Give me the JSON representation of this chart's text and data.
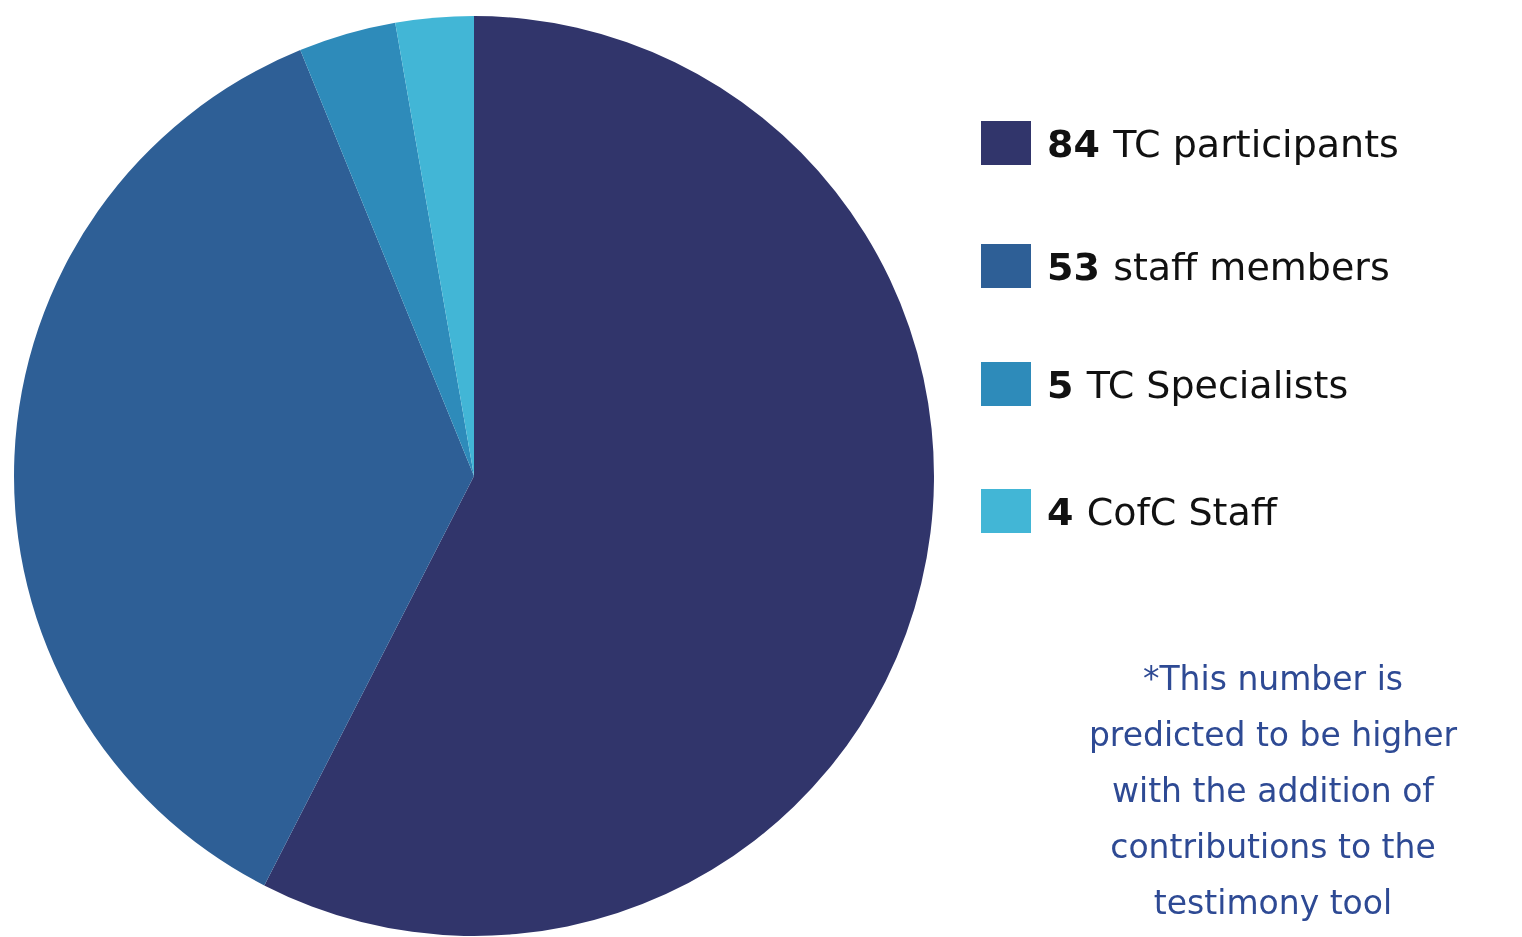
{
  "chart_data": {
    "type": "pie",
    "categories": [
      "TC participants",
      "staff members",
      "TC Specialists",
      "CofC Staff"
    ],
    "values": [
      84,
      53,
      5,
      4
    ],
    "colors": [
      "#31356b",
      "#2e5f96",
      "#2e8bba",
      "#42b6d6"
    ],
    "data_labels": true,
    "legend": "right",
    "annotations": [
      "*This number is\npredicted to be higher\nwith the addition of\ncontributions to the\ntestimony tool"
    ]
  }
}
